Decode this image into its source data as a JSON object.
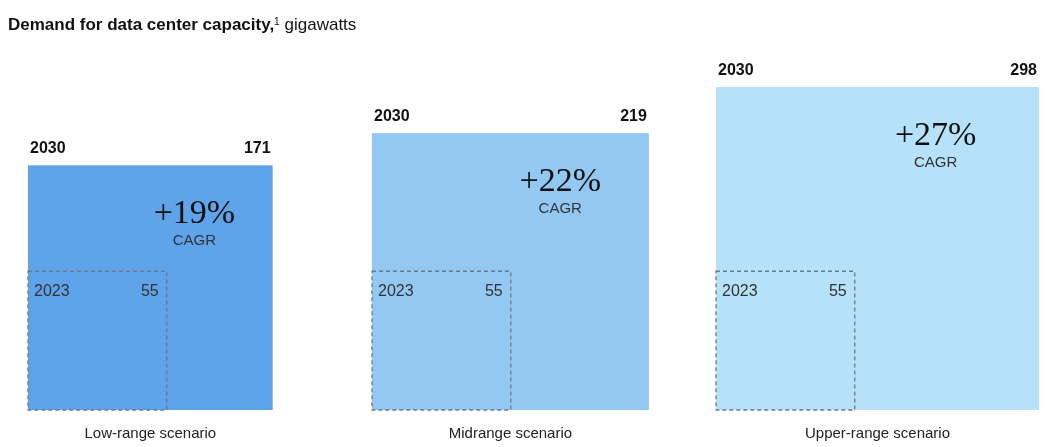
{
  "chart_data": {
    "type": "other",
    "title": "Demand for data center capacity,$^{1}$ gigawatts",
    "categories": [
      "Low-range scenario",
      "Midrange scenario",
      "Upper-range scenario"
    ],
    "series": [
      {
        "name": "2030",
        "colors": [
          "#5fa3eb",
          "#92c8f2",
          "#b5e2f8"
        ],
        "values": [
          171,
          219,
          298
        ]
      },
      {
        "name": "2023",
        "colors": [
          "#5fa3eb",
          "#92c8f2",
          "#b5e2f8"
        ],
        "line_style": "dashed",
        "values": [
          55,
          55,
          55
        ]
      }
    ],
    "data_labels": true,
    "annotations": [
      {
        "text": "+19%",
        "x": "Low-range scenario"
      },
      {
        "text": "CAGR",
        "x": "Low-range scenario"
      },
      {
        "text": "+22%",
        "x": "Midrange scenario"
      },
      {
        "text": "CAGR",
        "x": "Midrange scenario"
      },
      {
        "text": "+27%",
        "x": "Upper-range scenario"
      },
      {
        "text": "CAGR",
        "x": "Upper-range scenario"
      }
    ]
  }
}
